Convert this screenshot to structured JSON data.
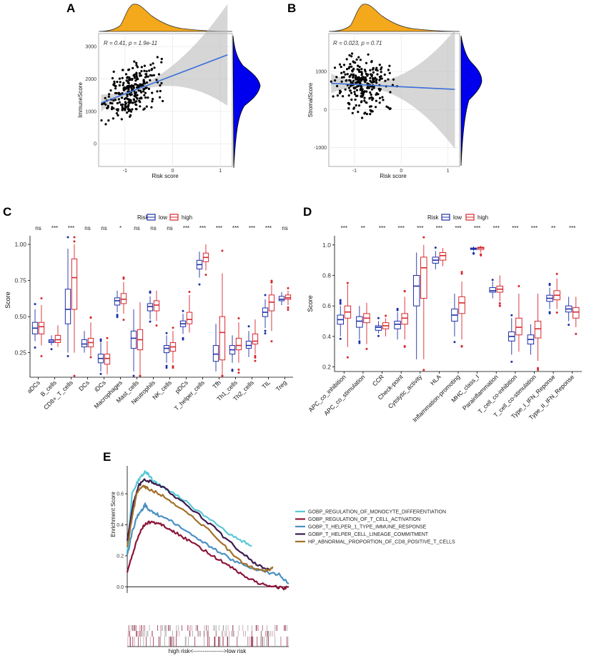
{
  "figure": {
    "panel_labels": [
      "A",
      "B",
      "C",
      "D",
      "E"
    ]
  },
  "colors": {
    "density_orange": "#F4A81B",
    "density_blue": "#0000EE",
    "fit_line": "#3A6FD8",
    "low": "#1F2FA8",
    "high": "#D8272C"
  },
  "chart_data": [
    {
      "type": "scatter",
      "panel": "A",
      "annotation": "R = 0.41, p = 1.9e-11",
      "xlabel": "Risk score",
      "ylabel": "ImmuneScore",
      "xticks": [
        "-1",
        "0",
        "1"
      ],
      "yticks": [
        "0",
        "1000",
        "2000",
        "3000"
      ],
      "xlim": [
        -1.55,
        1.25
      ],
      "ylim": [
        -700,
        3400
      ],
      "fit": {
        "intercept": 2100,
        "slope": 560,
        "band": 180
      }
    },
    {
      "type": "scatter",
      "panel": "B",
      "annotation": "R = 0.023, p = 0.71",
      "xlabel": "Risk score",
      "ylabel": "StromalScore",
      "xticks": [
        "-1",
        "0",
        "1"
      ],
      "yticks": [
        "-1000",
        "0",
        "1000"
      ],
      "xlim": [
        -1.55,
        1.25
      ],
      "ylim": [
        -1500,
        2000
      ],
      "fit": {
        "intercept": 600,
        "slope": -60,
        "band": 180
      }
    },
    {
      "type": "box",
      "panel": "C",
      "legend_title": "Risk",
      "legend_entries": [
        "low",
        "high"
      ],
      "ylabel": "Score",
      "yticks": [
        "0.25",
        "0.50",
        "0.75",
        "1.00"
      ],
      "ylim": [
        0.08,
        1.06
      ],
      "categories": [
        "aDCs",
        "B_cells",
        "CD8+_T_cells",
        "DCs",
        "iDCs",
        "Macrophages",
        "Mast_cells",
        "Neutrophils",
        "NK_cells",
        "pDCs",
        "T_helper_cells",
        "Tfh",
        "Th1_cells",
        "Th2_cells",
        "TIL",
        "Treg"
      ],
      "significance": [
        "ns",
        "***",
        "***",
        "ns",
        "ns",
        "*",
        "ns",
        "ns",
        "ns",
        "***",
        "***",
        "***",
        "***",
        "***",
        "***",
        "ns"
      ],
      "low": [
        [
          0.33,
          0.38,
          0.42,
          0.46,
          0.55
        ],
        [
          0.3,
          0.32,
          0.33,
          0.34,
          0.37
        ],
        [
          0.25,
          0.45,
          0.55,
          0.69,
          0.97
        ],
        [
          0.25,
          0.29,
          0.31,
          0.34,
          0.4
        ],
        [
          0.12,
          0.18,
          0.21,
          0.24,
          0.32
        ],
        [
          0.53,
          0.58,
          0.61,
          0.63,
          0.68
        ],
        [
          0.12,
          0.28,
          0.35,
          0.4,
          0.55
        ],
        [
          0.48,
          0.54,
          0.57,
          0.59,
          0.64
        ],
        [
          0.18,
          0.25,
          0.28,
          0.3,
          0.37
        ],
        [
          0.38,
          0.43,
          0.45,
          0.47,
          0.52
        ],
        [
          0.77,
          0.83,
          0.86,
          0.89,
          0.95
        ],
        [
          0.12,
          0.19,
          0.24,
          0.3,
          0.45
        ],
        [
          0.18,
          0.24,
          0.27,
          0.3,
          0.37
        ],
        [
          0.22,
          0.28,
          0.3,
          0.33,
          0.4
        ],
        [
          0.42,
          0.5,
          0.53,
          0.56,
          0.62
        ],
        [
          0.58,
          0.61,
          0.62,
          0.64,
          0.67
        ]
      ],
      "high": [
        [
          0.3,
          0.38,
          0.43,
          0.46,
          0.58
        ],
        [
          0.29,
          0.32,
          0.34,
          0.37,
          0.44
        ],
        [
          0.25,
          0.55,
          0.77,
          0.9,
          1.0
        ],
        [
          0.23,
          0.29,
          0.32,
          0.35,
          0.46
        ],
        [
          0.1,
          0.17,
          0.21,
          0.24,
          0.33
        ],
        [
          0.52,
          0.59,
          0.62,
          0.66,
          0.74
        ],
        [
          0.1,
          0.27,
          0.34,
          0.41,
          0.6
        ],
        [
          0.47,
          0.54,
          0.58,
          0.61,
          0.68
        ],
        [
          0.18,
          0.26,
          0.29,
          0.32,
          0.4
        ],
        [
          0.39,
          0.45,
          0.48,
          0.53,
          0.65
        ],
        [
          0.82,
          0.88,
          0.91,
          0.94,
          1.0
        ],
        [
          0.1,
          0.2,
          0.39,
          0.5,
          0.8
        ],
        [
          0.18,
          0.27,
          0.3,
          0.35,
          0.46
        ],
        [
          0.24,
          0.31,
          0.33,
          0.38,
          0.48
        ],
        [
          0.4,
          0.54,
          0.6,
          0.65,
          0.72
        ],
        [
          0.58,
          0.62,
          0.63,
          0.65,
          0.68
        ]
      ]
    },
    {
      "type": "box",
      "panel": "D",
      "legend_title": "Risk",
      "legend_entries": [
        "low",
        "high"
      ],
      "ylabel": "Score",
      "yticks": [
        "0.2",
        "0.4",
        "0.6",
        "0.8",
        "1.0"
      ],
      "ylim": [
        0.17,
        1.06
      ],
      "categories": [
        "APC_co_inhibition",
        "APC_co_stimulation",
        "CCR",
        "Check-point",
        "Cytolytic_activity",
        "HLA",
        "Inflammation-promoting",
        "MHC_class_I",
        "Parainflammation",
        "T_cell_co-inhibition",
        "T_cell_co-stimulation",
        "Type_I_IFN_Reponse",
        "Type_II_IFN_Reponse"
      ],
      "significance": [
        "***",
        "**",
        "***",
        "***",
        "***",
        "***",
        "***",
        "***",
        "***",
        "***",
        "***",
        "**",
        "***"
      ],
      "low": [
        [
          0.4,
          0.48,
          0.51,
          0.54,
          0.6
        ],
        [
          0.38,
          0.46,
          0.5,
          0.53,
          0.6
        ],
        [
          0.42,
          0.44,
          0.46,
          0.47,
          0.5
        ],
        [
          0.38,
          0.45,
          0.48,
          0.5,
          0.56
        ],
        [
          0.25,
          0.6,
          0.73,
          0.8,
          0.95
        ],
        [
          0.84,
          0.88,
          0.9,
          0.92,
          0.96
        ],
        [
          0.4,
          0.5,
          0.54,
          0.58,
          0.68
        ],
        [
          0.96,
          0.97,
          0.975,
          0.98,
          0.99
        ],
        [
          0.65,
          0.69,
          0.7,
          0.72,
          0.76
        ],
        [
          0.28,
          0.37,
          0.4,
          0.43,
          0.52
        ],
        [
          0.28,
          0.35,
          0.38,
          0.41,
          0.48
        ],
        [
          0.58,
          0.63,
          0.65,
          0.67,
          0.72
        ],
        [
          0.5,
          0.56,
          0.58,
          0.6,
          0.66
        ]
      ],
      "high": [
        [
          0.33,
          0.52,
          0.56,
          0.6,
          0.74
        ],
        [
          0.35,
          0.49,
          0.52,
          0.55,
          0.62
        ],
        [
          0.4,
          0.45,
          0.47,
          0.49,
          0.52
        ],
        [
          0.38,
          0.48,
          0.52,
          0.55,
          0.66
        ],
        [
          0.25,
          0.65,
          0.85,
          0.92,
          1.0
        ],
        [
          0.86,
          0.9,
          0.93,
          0.95,
          0.98
        ],
        [
          0.38,
          0.55,
          0.62,
          0.66,
          0.76
        ],
        [
          0.95,
          0.97,
          0.98,
          0.985,
          0.995
        ],
        [
          0.63,
          0.69,
          0.71,
          0.73,
          0.8
        ],
        [
          0.3,
          0.41,
          0.46,
          0.52,
          0.68
        ],
        [
          0.24,
          0.39,
          0.45,
          0.5,
          0.68
        ],
        [
          0.58,
          0.64,
          0.67,
          0.7,
          0.78
        ],
        [
          0.46,
          0.52,
          0.56,
          0.59,
          0.66
        ]
      ]
    },
    {
      "type": "line",
      "panel": "E",
      "ylabel": "Enrichment Score",
      "yticks": [
        "0.0",
        "0.2",
        "0.4",
        "0.6"
      ],
      "ylim": [
        -0.04,
        0.78
      ],
      "xlim": [
        0,
        100
      ],
      "bottom_label": "high risk<---------------->low risk",
      "series": [
        {
          "name": "GOBP_REGULATION_OF_MONOCYTE_DIFFERENTIATION",
          "color": "#5BC8D6",
          "x": [
            0,
            3,
            6,
            9,
            11,
            13,
            16,
            20,
            26,
            34,
            42,
            50,
            58,
            66,
            72,
            77
          ],
          "y": [
            0.22,
            0.6,
            0.67,
            0.72,
            0.74,
            0.73,
            0.68,
            0.66,
            0.62,
            0.57,
            0.5,
            0.44,
            0.38,
            0.32,
            0.29,
            0.26
          ]
        },
        {
          "name": "GOBP_REGULATION_OF_T_CELL_ACTIVATION",
          "color": "#8B1538",
          "x": [
            0,
            3,
            6,
            9,
            12,
            15,
            18,
            22,
            26,
            30,
            36,
            42,
            50,
            56,
            62,
            68,
            74,
            80,
            86,
            92,
            97,
            100
          ],
          "y": [
            0.1,
            0.2,
            0.3,
            0.38,
            0.41,
            0.42,
            0.41,
            0.4,
            0.37,
            0.35,
            0.31,
            0.27,
            0.22,
            0.18,
            0.14,
            0.1,
            0.06,
            0.03,
            0.01,
            0.0,
            -0.01,
            0.0
          ]
        },
        {
          "name": "GOBP_T_HELPER_1_TYPE_IMMUNE_RESPONSE",
          "color": "#4A90C2",
          "x": [
            0,
            3,
            6,
            9,
            11,
            13,
            16,
            20,
            26,
            32,
            40,
            48,
            56,
            64,
            72,
            80,
            88,
            94,
            100
          ],
          "y": [
            0.2,
            0.35,
            0.45,
            0.49,
            0.53,
            0.5,
            0.48,
            0.46,
            0.43,
            0.39,
            0.34,
            0.28,
            0.23,
            0.18,
            0.14,
            0.11,
            0.09,
            0.08,
            0.02
          ]
        },
        {
          "name": "GOBP_T_HELPER_CELL_LINEAGE_COMMITMENT",
          "color": "#3A1A4E",
          "x": [
            0,
            4,
            7,
            10,
            14,
            18,
            24,
            30,
            38,
            46,
            54,
            62,
            70,
            78,
            84,
            88
          ],
          "y": [
            0.3,
            0.55,
            0.65,
            0.69,
            0.68,
            0.66,
            0.63,
            0.58,
            0.52,
            0.45,
            0.38,
            0.3,
            0.23,
            0.16,
            0.12,
            0.11
          ]
        },
        {
          "name": "HP_ABNORMAL_PROPORTION_OF_CD8_POSITIVE_T_CELLS",
          "color": "#A2702A",
          "x": [
            0,
            3,
            6,
            9,
            12,
            15,
            20,
            26,
            34,
            42,
            50,
            58,
            66,
            72,
            78,
            84,
            88,
            90
          ],
          "y": [
            0.25,
            0.45,
            0.6,
            0.65,
            0.64,
            0.62,
            0.6,
            0.56,
            0.5,
            0.44,
            0.37,
            0.29,
            0.2,
            0.15,
            0.12,
            0.1,
            0.11,
            0.13
          ]
        }
      ]
    }
  ]
}
